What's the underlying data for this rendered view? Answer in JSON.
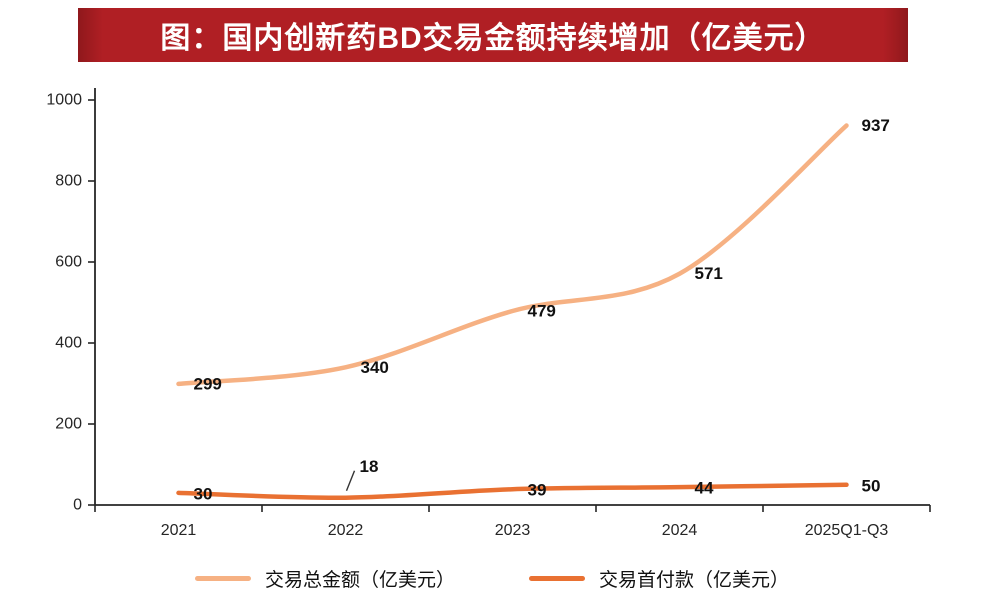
{
  "colors": {
    "banner": "#b01f24",
    "banner_edge": "#8f181c",
    "axis": "#262626",
    "label": "#111111",
    "series_total": "#f6b183",
    "series_downpayment": "#e97132"
  },
  "chart_data": {
    "type": "line",
    "title": "图：国内创新药BD交易金额持续增加（亿美元）",
    "categories": [
      "2021",
      "2022",
      "2023",
      "2024",
      "2025Q1-Q3"
    ],
    "series": [
      {
        "name": "交易总金额（亿美元）",
        "values": [
          299,
          340,
          479,
          571,
          937
        ],
        "color": "#f6b183"
      },
      {
        "name": "交易首付款（亿美元）",
        "values": [
          30,
          18,
          39,
          44,
          50
        ],
        "color": "#e97132"
      }
    ],
    "ylim": [
      0,
      1000
    ],
    "yticks": [
      0,
      200,
      400,
      600,
      800,
      1000
    ],
    "grid": false,
    "legend_position": "bottom",
    "annotations": [
      {
        "series": 1,
        "index": 1,
        "type": "leader-line",
        "label": "18"
      }
    ]
  }
}
